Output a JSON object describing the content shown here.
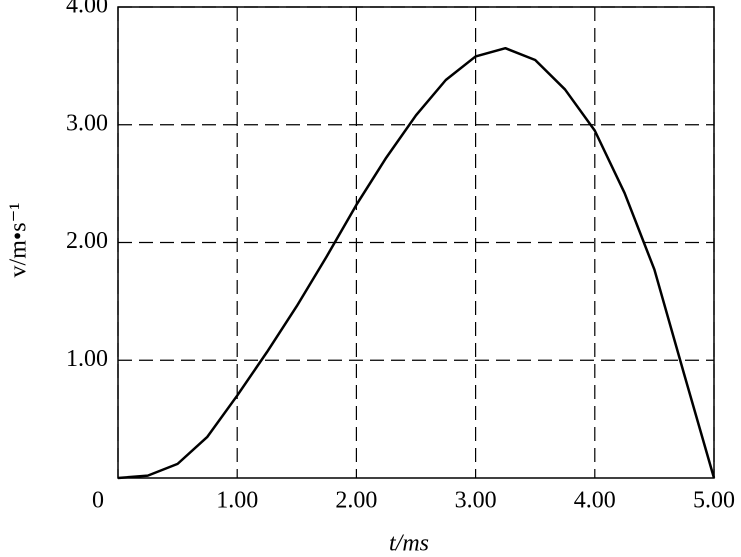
{
  "chart_data": {
    "type": "line",
    "xlabel": "t/ms",
    "ylabel": "v/m•s⁻¹",
    "x": [
      0,
      0.25,
      0.5,
      0.75,
      1,
      1.25,
      1.5,
      1.75,
      2,
      2.25,
      2.5,
      2.75,
      3,
      3.25,
      3.5,
      3.75,
      4,
      4.25,
      4.5,
      4.75,
      5
    ],
    "series": [
      {
        "color": "#000000",
        "values": [
          0,
          0.02,
          0.12,
          0.35,
          0.7,
          1.07,
          1.46,
          1.88,
          2.32,
          2.72,
          3.08,
          3.38,
          3.58,
          3.65,
          3.55,
          3.3,
          2.95,
          2.42,
          1.77,
          0.88,
          0
        ]
      }
    ],
    "xlim": [
      0,
      5
    ],
    "ylim": [
      0,
      4
    ],
    "xticks": [
      0,
      {
        "value": 1,
        "label": "1.00"
      },
      {
        "value": 2,
        "label": "2.00"
      },
      {
        "value": 3,
        "label": "3.00"
      },
      {
        "value": 4,
        "label": "4.00"
      },
      {
        "value": 5,
        "label": "5.00"
      }
    ],
    "yticks": [
      {
        "value": 1,
        "label": "1.00"
      },
      {
        "value": 2,
        "label": "2.00"
      },
      {
        "value": 3,
        "label": "3.00"
      },
      {
        "value": 4,
        "label": "4.00"
      }
    ],
    "grid": true
  }
}
